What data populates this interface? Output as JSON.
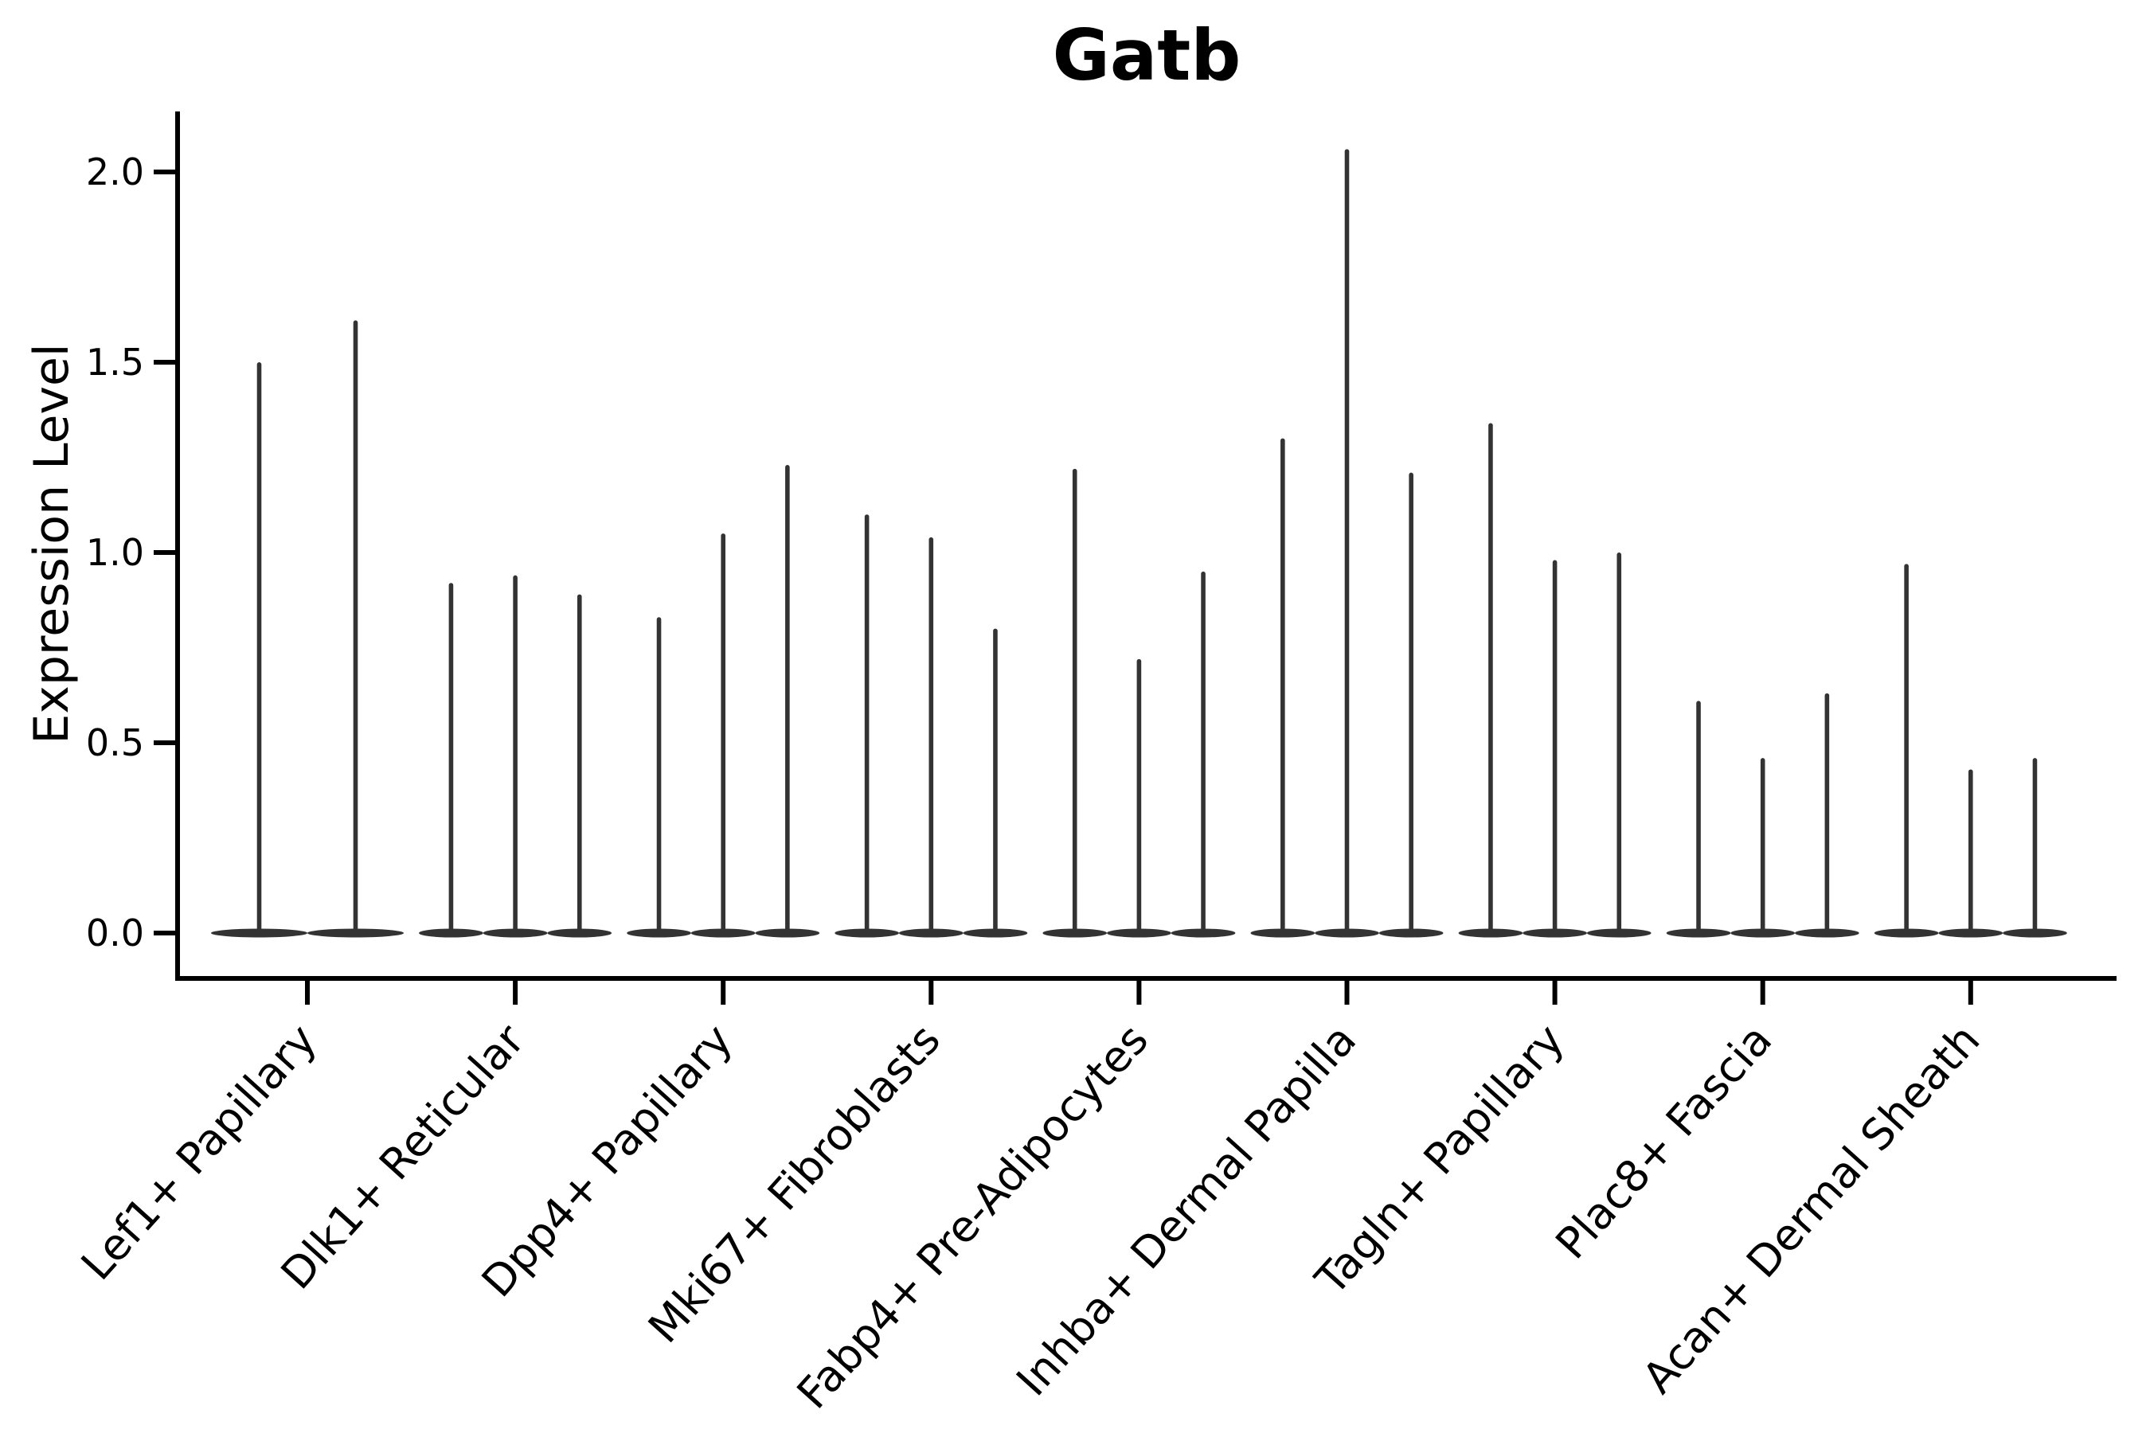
{
  "title": "Gatb",
  "ylabel": "Expression Level",
  "chart_data": {
    "type": "violin",
    "title": "Gatb",
    "xlabel": "",
    "ylabel": "Expression Level",
    "ylim": [
      0.0,
      2.15
    ],
    "yticks": [
      0.0,
      0.5,
      1.0,
      1.5,
      2.0
    ],
    "ytick_labels": [
      "0.0",
      "0.5",
      "1.0",
      "1.5",
      "2.0"
    ],
    "grid": false,
    "legend": "none",
    "x_label_rotation_deg": 48,
    "categories": [
      "Lef1+ Papillary",
      "Dlk1+ Reticular",
      "Dpp4+ Papillary",
      "Mki67+ Fibroblasts",
      "Fabp4+ Pre-Adipocytes",
      "Inhba+ Dermal Papilla",
      "Tagln+ Papillary",
      "Plac8+ Fascia",
      "Acan+ Dermal Sheath"
    ],
    "series": [
      {
        "category": "Lef1+ Papillary",
        "violin_peaks": [
          1.5,
          1.61
        ],
        "baseline_value": 0.0
      },
      {
        "category": "Dlk1+ Reticular",
        "violin_peaks": [
          0.92,
          0.94,
          0.89
        ],
        "baseline_value": 0.0
      },
      {
        "category": "Dpp4+ Papillary",
        "violin_peaks": [
          0.83,
          1.05,
          1.23
        ],
        "baseline_value": 0.0
      },
      {
        "category": "Mki67+ Fibroblasts",
        "violin_peaks": [
          1.1,
          1.04,
          0.8
        ],
        "baseline_value": 0.0
      },
      {
        "category": "Fabp4+ Pre-Adipocytes",
        "violin_peaks": [
          1.22,
          0.72,
          0.95
        ],
        "baseline_value": 0.0
      },
      {
        "category": "Inhba+ Dermal Papilla",
        "violin_peaks": [
          1.3,
          2.06,
          1.21
        ],
        "baseline_value": 0.0
      },
      {
        "category": "Tagln+ Papillary",
        "violin_peaks": [
          1.34,
          0.98,
          1.0
        ],
        "baseline_value": 0.0
      },
      {
        "category": "Plac8+ Fascia",
        "violin_peaks": [
          0.61,
          0.46,
          0.63
        ],
        "baseline_value": 0.0
      },
      {
        "category": "Acan+ Dermal Sheath",
        "violin_peaks": [
          0.97,
          0.43,
          0.46
        ],
        "baseline_value": 0.0
      }
    ],
    "colors": {
      "violin": "#333333",
      "axis": "#000000",
      "text": "#000000",
      "background": "#ffffff"
    }
  }
}
